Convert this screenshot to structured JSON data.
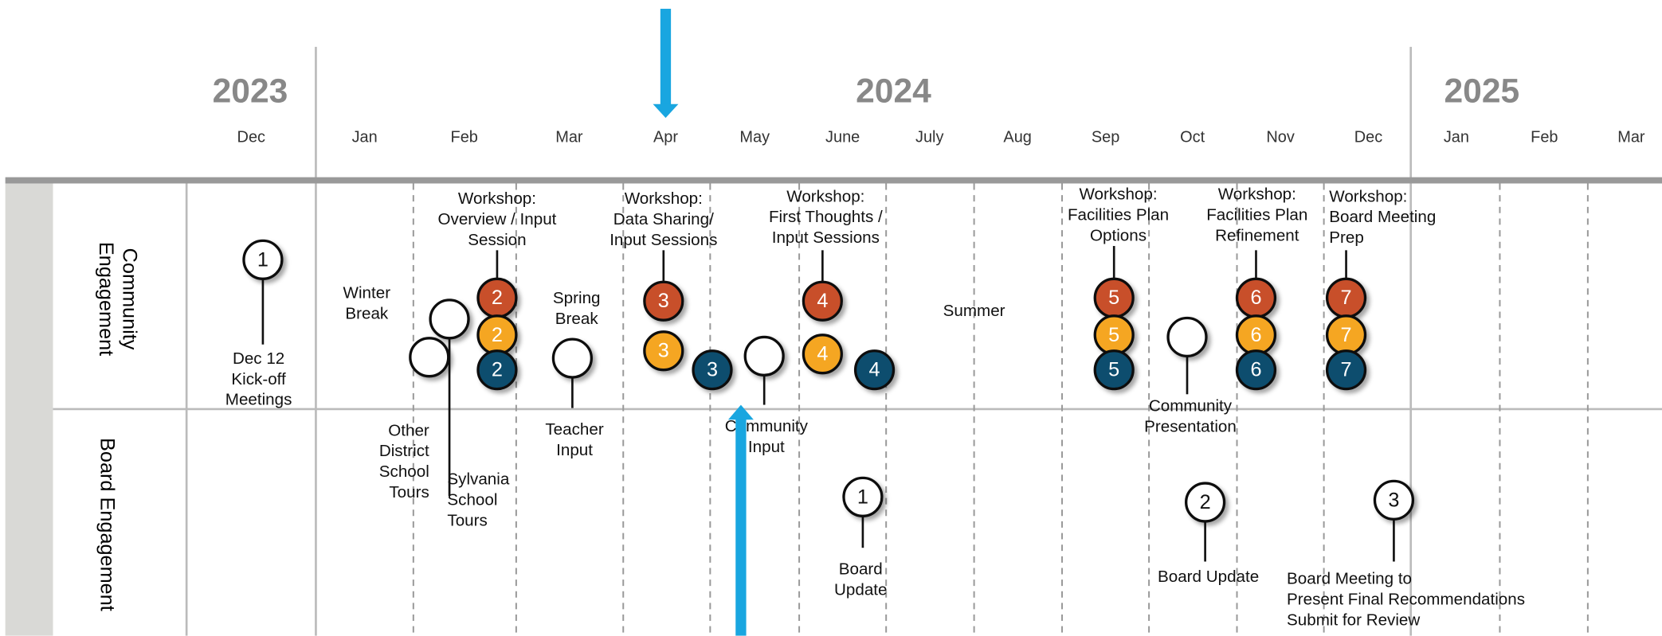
{
  "header": {
    "years": [
      "2023",
      "2024",
      "2025"
    ],
    "months": [
      "Dec",
      "Jan",
      "Feb",
      "Mar",
      "Apr",
      "May",
      "June",
      "July",
      "Aug",
      "Sep",
      "Oct",
      "Nov",
      "Dec",
      "Jan",
      "Feb",
      "Mar"
    ]
  },
  "rows": [
    [
      "Community",
      "Engagement"
    ],
    [
      "Board Engagement"
    ]
  ],
  "labels": [
    [
      "Dec 12",
      "Kick-off",
      "Meetings"
    ],
    [
      "Winter",
      "Break"
    ],
    [
      "Workshop:",
      "Overview / Input",
      "Session"
    ],
    [
      "Other",
      "District",
      "School",
      "Tours"
    ],
    [
      "Sylvania",
      "School",
      "Tours"
    ],
    [
      "Spring",
      "Break"
    ],
    [
      "Teacher",
      "Input"
    ],
    [
      "Workshop:",
      "Data Sharing/",
      "Input Sessions"
    ],
    [
      "Community",
      "Input"
    ],
    [
      "Workshop:",
      "First Thoughts /",
      "Input Sessions"
    ],
    [
      "Summer"
    ],
    [
      "Workshop:",
      "Facilities Plan",
      "Options"
    ],
    [
      "Community",
      "Presentation"
    ],
    [
      "Workshop:",
      "Facilities Plan",
      "Refinement"
    ],
    [
      "Workshop:",
      "Board Meeting",
      "Prep"
    ],
    [
      "Board",
      "Update"
    ],
    [
      "Board Update"
    ],
    [
      "Board Meeting to",
      "Present Final Recommendations",
      "Submit for Review"
    ]
  ],
  "markers": [
    1,
    2,
    2,
    2,
    3,
    3,
    3,
    4,
    4,
    4,
    5,
    5,
    5,
    6,
    6,
    6,
    7,
    7,
    7,
    1,
    2,
    3
  ]
}
